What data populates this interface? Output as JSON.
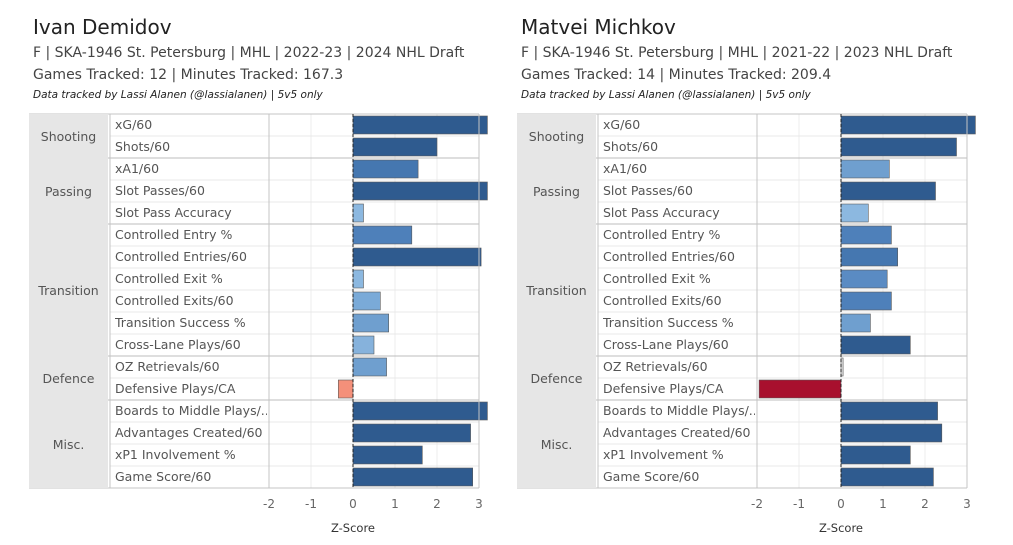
{
  "chart_data": [
    {
      "type": "bar",
      "orientation": "horizontal",
      "player": "Ivan Demidov",
      "info_line1": "F | SKA-1946 St. Petersburg | MHL | 2022-23 | 2024 NHL Draft",
      "info_line2": "Games Tracked: 12 | Minutes Tracked: 167.3",
      "note": "Data tracked by Lassi Alanen (@lassialanen) | 5v5 only",
      "xlabel": "Z-Score",
      "xlim": [
        -2,
        3
      ],
      "xticks": [
        "-2",
        "-1",
        "0",
        "1",
        "2",
        "3"
      ],
      "groups": [
        {
          "name": "Shooting",
          "metrics": [
            {
              "label": "xG/60",
              "value": 3.2,
              "color": "#2f5b8f"
            },
            {
              "label": "Shots/60",
              "value": 2.0,
              "color": "#2f5b8f"
            }
          ]
        },
        {
          "name": "Passing",
          "metrics": [
            {
              "label": "xA1/60",
              "value": 1.55,
              "color": "#4577b0"
            },
            {
              "label": "Slot Passes/60",
              "value": 3.2,
              "color": "#2f5b8f"
            },
            {
              "label": "Slot Pass Accuracy",
              "value": 0.25,
              "color": "#8cb8e0"
            }
          ]
        },
        {
          "name": "Transition",
          "metrics": [
            {
              "label": "Controlled Entry %",
              "value": 1.4,
              "color": "#4e80ba"
            },
            {
              "label": "Controlled Entries/60",
              "value": 3.05,
              "color": "#2f5b8f"
            },
            {
              "label": "Controlled Exit %",
              "value": 0.25,
              "color": "#8cb8e0"
            },
            {
              "label": "Controlled Exits/60",
              "value": 0.65,
              "color": "#7aaad8"
            },
            {
              "label": "Transition Success %",
              "value": 0.85,
              "color": "#6f9fcf"
            },
            {
              "label": "Cross-Lane Plays/60",
              "value": 0.5,
              "color": "#86b2dc"
            }
          ]
        },
        {
          "name": "Defence",
          "metrics": [
            {
              "label": "OZ Retrievals/60",
              "value": 0.8,
              "color": "#6f9fcf"
            },
            {
              "label": "Defensive Plays/CA",
              "value": -0.35,
              "color": "#f4907a"
            }
          ]
        },
        {
          "name": "Misc.",
          "metrics": [
            {
              "label": "Boards to Middle Plays/..",
              "value": 3.2,
              "color": "#2f5b8f"
            },
            {
              "label": "Advantages Created/60",
              "value": 2.8,
              "color": "#2f5b8f"
            },
            {
              "label": "xP1 Involvement %",
              "value": 1.65,
              "color": "#2f5b8f"
            },
            {
              "label": "Game Score/60",
              "value": 2.85,
              "color": "#2f5b8f"
            }
          ]
        }
      ]
    },
    {
      "type": "bar",
      "orientation": "horizontal",
      "player": "Matvei Michkov",
      "info_line1": "F | SKA-1946 St. Petersburg | MHL | 2021-22 | 2023 NHL Draft",
      "info_line2": "Games Tracked: 14 | Minutes Tracked: 209.4",
      "note": "Data tracked by Lassi Alanen (@lassialanen) | 5v5 only",
      "xlabel": "Z-Score",
      "xlim": [
        -2,
        3
      ],
      "xticks": [
        "-2",
        "-1",
        "0",
        "1",
        "2",
        "3"
      ],
      "groups": [
        {
          "name": "Shooting",
          "metrics": [
            {
              "label": "xG/60",
              "value": 3.2,
              "color": "#2f5b8f"
            },
            {
              "label": "Shots/60",
              "value": 2.75,
              "color": "#2f5b8f"
            }
          ]
        },
        {
          "name": "Passing",
          "metrics": [
            {
              "label": "xA1/60",
              "value": 1.15,
              "color": "#6f9fcf"
            },
            {
              "label": "Slot Passes/60",
              "value": 2.25,
              "color": "#2f5b8f"
            },
            {
              "label": "Slot Pass Accuracy",
              "value": 0.65,
              "color": "#8cb8e0"
            }
          ]
        },
        {
          "name": "Transition",
          "metrics": [
            {
              "label": "Controlled Entry %",
              "value": 1.2,
              "color": "#4e80ba"
            },
            {
              "label": "Controlled Entries/60",
              "value": 1.35,
              "color": "#4577b0"
            },
            {
              "label": "Controlled Exit %",
              "value": 1.1,
              "color": "#5a8bc3"
            },
            {
              "label": "Controlled Exits/60",
              "value": 1.2,
              "color": "#4e80ba"
            },
            {
              "label": "Transition Success %",
              "value": 0.7,
              "color": "#6f9fcf"
            },
            {
              "label": "Cross-Lane Plays/60",
              "value": 1.65,
              "color": "#2f5b8f"
            }
          ]
        },
        {
          "name": "Defence",
          "metrics": [
            {
              "label": "OZ Retrievals/60",
              "value": 0.05,
              "color": "#e0e0e0"
            },
            {
              "label": "Defensive Plays/CA",
              "value": -1.95,
              "color": "#a8102e"
            }
          ]
        },
        {
          "name": "Misc.",
          "metrics": [
            {
              "label": "Boards to Middle Plays/..",
              "value": 2.3,
              "color": "#2f5b8f"
            },
            {
              "label": "Advantages Created/60",
              "value": 2.4,
              "color": "#2f5b8f"
            },
            {
              "label": "xP1 Involvement %",
              "value": 1.65,
              "color": "#2f5b8f"
            },
            {
              "label": "Game Score/60",
              "value": 2.2,
              "color": "#2f5b8f"
            }
          ]
        }
      ]
    }
  ]
}
